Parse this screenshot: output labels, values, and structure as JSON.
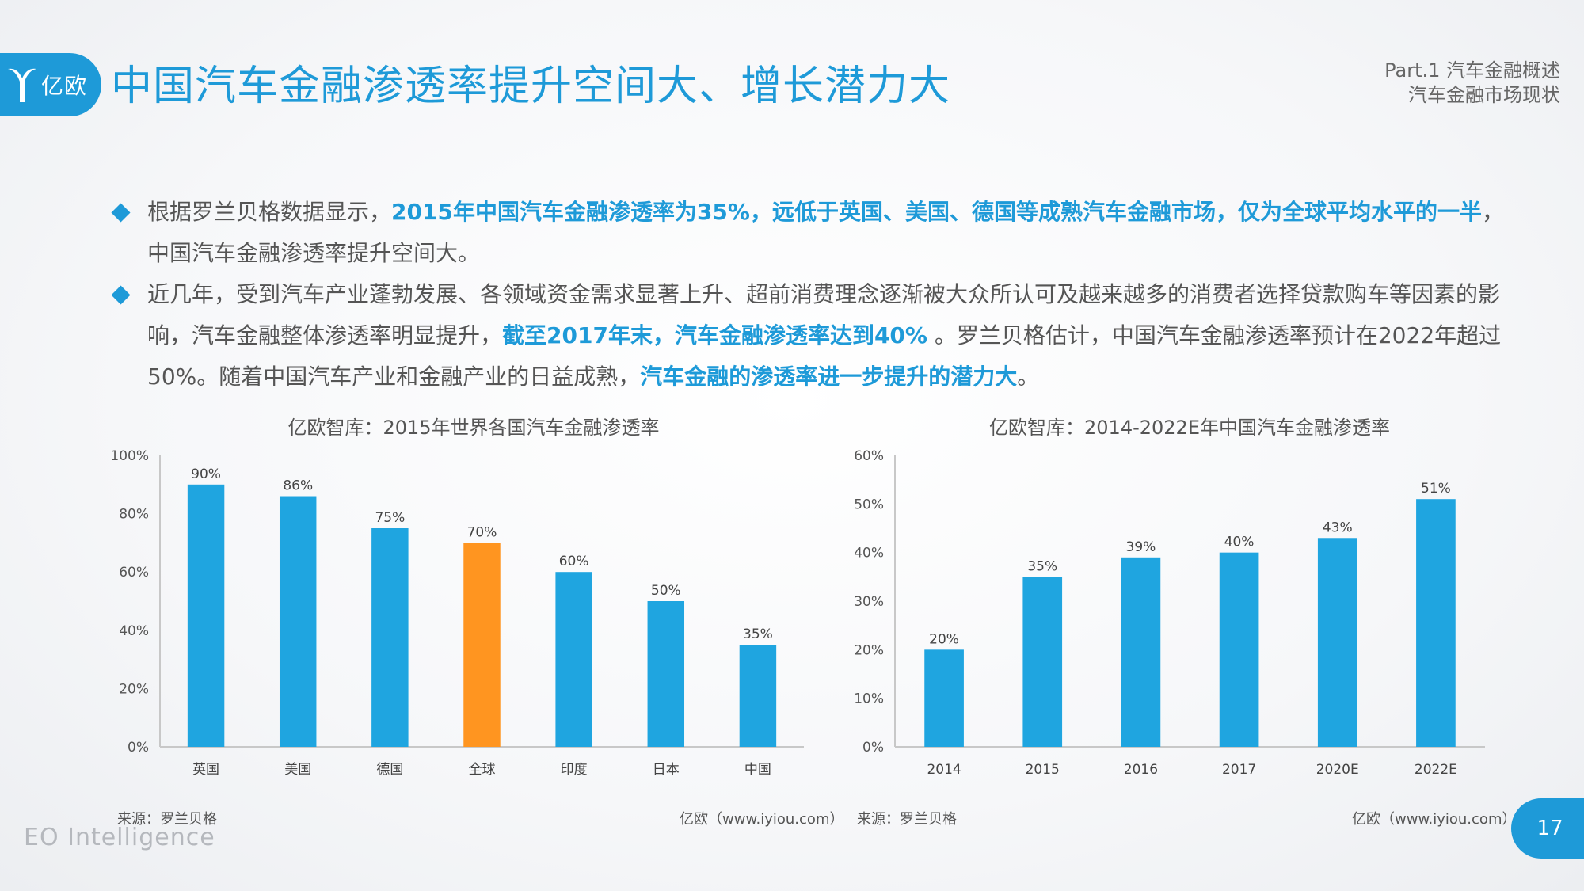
{
  "header": {
    "logo_text": "亿欧",
    "title": "中国汽车金融渗透率提升空间大、增长潜力大",
    "section_line1": "Part.1 汽车金融概述",
    "section_line2": "汽车金融市场现状"
  },
  "bullets": [
    {
      "p1": "根据罗兰贝格数据显示，",
      "h1": "2015年中国汽车金融渗透率为35%，远低于英国、美国、德国等成熟汽车金融市场，仅为全球平均水平的一半",
      "p2": "，中国汽车金融渗透率提升空间大。"
    },
    {
      "p1": "近几年，受到汽车产业蓬勃发展、各领域资金需求显著上升、超前消费理念逐渐被大众所认可及越来越多的消费者选择贷款购车等因素的影响，汽车金融整体渗透率明显提升，",
      "h1": "截至2017年末，汽车金融渗透率达到40%",
      "p2": " 。罗兰贝格估计，中国汽车金融渗透率预计在2022年超过50%。随着中国汽车产业和金融产业的日益成熟，",
      "h2": "汽车金融的渗透率进一步提升的潜力大",
      "p3": "。"
    }
  ],
  "chart_data": [
    {
      "type": "bar",
      "title": "亿欧智库：2015年世界各国汽车金融渗透率",
      "categories": [
        "英国",
        "美国",
        "德国",
        "全球",
        "印度",
        "日本",
        "中国"
      ],
      "values": [
        90,
        86,
        75,
        70,
        60,
        50,
        35
      ],
      "value_labels": [
        "90%",
        "86%",
        "75%",
        "70%",
        "60%",
        "50%",
        "35%"
      ],
      "highlight_category": "全球",
      "ylim": [
        0,
        100
      ],
      "yticks": [
        "0%",
        "20%",
        "40%",
        "60%",
        "80%",
        "100%"
      ],
      "xlabel": "",
      "ylabel": "",
      "grid": false,
      "colors": {
        "bar": "#1fa5e0",
        "highlight": "#ff9520"
      },
      "source": "来源：罗兰贝格",
      "credit": "亿欧（www.iyiou.com）"
    },
    {
      "type": "bar",
      "title": "亿欧智库：2014-2022E年中国汽车金融渗透率",
      "categories": [
        "2014",
        "2015",
        "2016",
        "2017",
        "2020E",
        "2022E"
      ],
      "values": [
        20,
        35,
        39,
        40,
        43,
        51
      ],
      "value_labels": [
        "20%",
        "35%",
        "39%",
        "40%",
        "43%",
        "51%"
      ],
      "ylim": [
        0,
        60
      ],
      "yticks": [
        "0%",
        "10%",
        "20%",
        "30%",
        "40%",
        "50%",
        "60%"
      ],
      "xlabel": "",
      "ylabel": "",
      "grid": false,
      "colors": {
        "bar": "#1fa5e0"
      },
      "source": "来源：罗兰贝格",
      "credit": "亿欧（www.iyiou.com）"
    }
  ],
  "footer": {
    "brand": "EO Intelligence",
    "page_number": "17"
  }
}
